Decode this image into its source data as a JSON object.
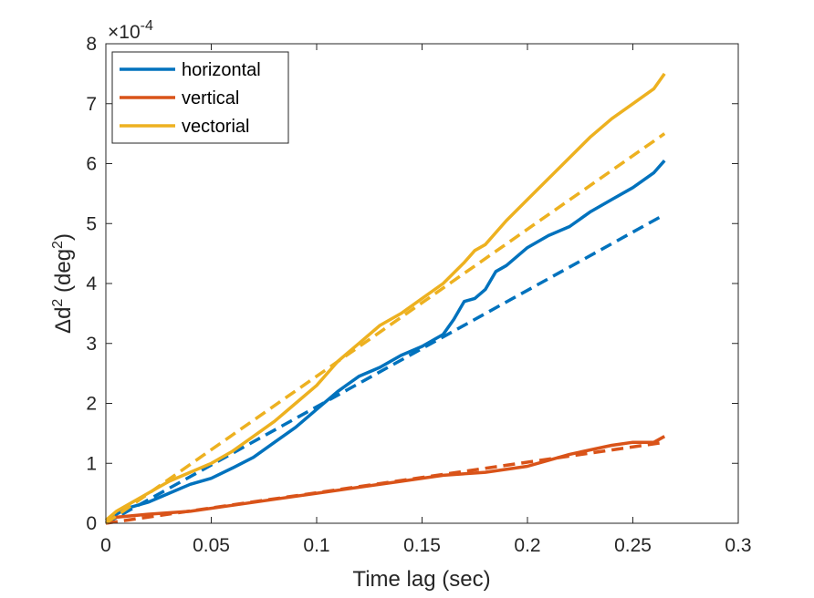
{
  "chart_data": {
    "type": "line",
    "title": "",
    "xlabel": "Time lag (sec)",
    "ylabel": {
      "prefix": "Δd",
      "sup1": "2",
      "mid": " (deg",
      "sup2": "2",
      "suffix": ")"
    },
    "y_exponent": {
      "base": "×10",
      "power": "-4"
    },
    "xlim": [
      0,
      0.3
    ],
    "ylim": [
      0,
      8
    ],
    "x_ticks": [
      "0",
      "0.05",
      "0.1",
      "0.15",
      "0.2",
      "0.25",
      "0.3"
    ],
    "y_ticks": [
      "0",
      "1",
      "2",
      "3",
      "4",
      "5",
      "6",
      "7",
      "8"
    ],
    "grid": false,
    "legend_position": "top-left",
    "series": [
      {
        "name": "horizontal",
        "color": "#0072BD",
        "style": "solid",
        "x": [
          0,
          0.005,
          0.01,
          0.02,
          0.03,
          0.04,
          0.05,
          0.06,
          0.07,
          0.08,
          0.09,
          0.1,
          0.11,
          0.12,
          0.13,
          0.14,
          0.15,
          0.16,
          0.165,
          0.17,
          0.175,
          0.18,
          0.185,
          0.19,
          0.2,
          0.21,
          0.22,
          0.23,
          0.24,
          0.25,
          0.26,
          0.265
        ],
        "y": [
          0.05,
          0.15,
          0.25,
          0.35,
          0.5,
          0.65,
          0.75,
          0.92,
          1.1,
          1.35,
          1.6,
          1.9,
          2.2,
          2.45,
          2.6,
          2.8,
          2.95,
          3.15,
          3.4,
          3.7,
          3.75,
          3.9,
          4.2,
          4.3,
          4.6,
          4.8,
          4.95,
          5.2,
          5.4,
          5.6,
          5.85,
          6.05
        ]
      },
      {
        "name": "",
        "color": "#0072BD",
        "style": "dashed",
        "x": [
          0,
          0.265
        ],
        "y": [
          0,
          5.15
        ]
      },
      {
        "name": "vertical",
        "color": "#D95319",
        "style": "solid",
        "x": [
          0,
          0.005,
          0.02,
          0.04,
          0.06,
          0.08,
          0.1,
          0.12,
          0.14,
          0.16,
          0.18,
          0.2,
          0.22,
          0.24,
          0.25,
          0.26,
          0.265
        ],
        "y": [
          0.05,
          0.1,
          0.15,
          0.2,
          0.3,
          0.4,
          0.5,
          0.6,
          0.7,
          0.8,
          0.85,
          0.95,
          1.15,
          1.3,
          1.35,
          1.35,
          1.45
        ]
      },
      {
        "name": "",
        "color": "#D95319",
        "style": "dashed",
        "x": [
          0,
          0.265
        ],
        "y": [
          0,
          1.35
        ]
      },
      {
        "name": "vectorial",
        "color": "#EDB120",
        "style": "solid",
        "x": [
          0,
          0.005,
          0.01,
          0.02,
          0.03,
          0.04,
          0.05,
          0.06,
          0.07,
          0.08,
          0.09,
          0.1,
          0.11,
          0.12,
          0.13,
          0.14,
          0.15,
          0.16,
          0.17,
          0.175,
          0.18,
          0.19,
          0.2,
          0.21,
          0.22,
          0.23,
          0.24,
          0.25,
          0.26,
          0.265
        ],
        "y": [
          0.05,
          0.2,
          0.3,
          0.5,
          0.7,
          0.85,
          1.0,
          1.2,
          1.45,
          1.7,
          2.0,
          2.3,
          2.7,
          3.0,
          3.3,
          3.5,
          3.75,
          4.0,
          4.35,
          4.55,
          4.65,
          5.05,
          5.4,
          5.75,
          6.1,
          6.45,
          6.75,
          7.0,
          7.25,
          7.5
        ]
      },
      {
        "name": "",
        "color": "#EDB120",
        "style": "dashed",
        "x": [
          0,
          0.265
        ],
        "y": [
          0,
          6.5
        ]
      }
    ]
  }
}
